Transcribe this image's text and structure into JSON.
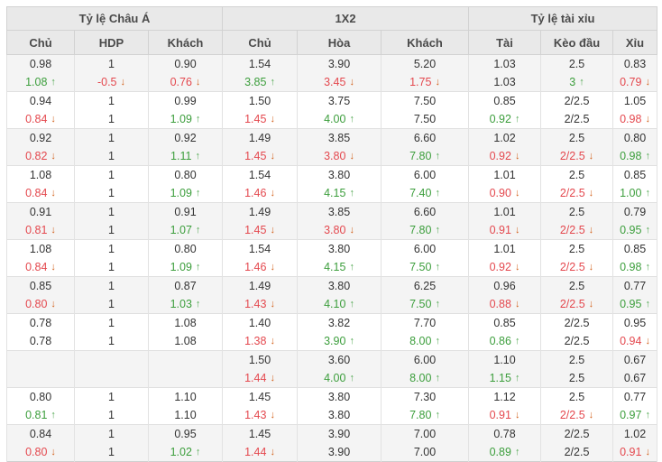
{
  "table": {
    "groups": [
      {
        "label": "Tỷ lệ Châu Á",
        "cols": [
          "Chủ",
          "HDP",
          "Khách"
        ]
      },
      {
        "label": "1X2",
        "cols": [
          "Chủ",
          "Hòa",
          "Khách"
        ]
      },
      {
        "label": "Tỷ lệ tài xỉu",
        "cols": [
          "Tài",
          "Kèo đầu",
          "Xỉu"
        ]
      }
    ],
    "colors": {
      "green": "#3c9e3c",
      "red": "#e4484e",
      "green_arrow": "#52a852",
      "red_arrow": "#d2601a",
      "text": "#333333",
      "header_bg": "#e9e9e9",
      "shade_bg": "#f4f4f4"
    },
    "rows": [
      {
        "shaded": true,
        "lines": [
          [
            {
              "v": "0.98"
            },
            {
              "v": "1"
            },
            {
              "v": "0.90"
            },
            {
              "v": "1.54"
            },
            {
              "v": "3.90"
            },
            {
              "v": "5.20"
            },
            {
              "v": "1.03"
            },
            {
              "v": "2.5"
            },
            {
              "v": "0.83"
            }
          ],
          [
            {
              "v": "1.08",
              "c": "green",
              "a": "up"
            },
            {
              "v": "-0.5",
              "c": "red",
              "a": "down"
            },
            {
              "v": "0.76",
              "c": "red",
              "a": "down"
            },
            {
              "v": "3.85",
              "c": "green",
              "a": "up"
            },
            {
              "v": "3.45",
              "c": "red",
              "a": "down"
            },
            {
              "v": "1.75",
              "c": "red",
              "a": "down"
            },
            {
              "v": "1.03"
            },
            {
              "v": "3",
              "c": "green",
              "a": "up"
            },
            {
              "v": "0.79",
              "c": "red",
              "a": "down"
            }
          ]
        ]
      },
      {
        "shaded": false,
        "lines": [
          [
            {
              "v": "0.94"
            },
            {
              "v": "1"
            },
            {
              "v": "0.99"
            },
            {
              "v": "1.50"
            },
            {
              "v": "3.75"
            },
            {
              "v": "7.50"
            },
            {
              "v": "0.85"
            },
            {
              "v": "2/2.5"
            },
            {
              "v": "1.05"
            }
          ],
          [
            {
              "v": "0.84",
              "c": "red",
              "a": "down"
            },
            {
              "v": "1"
            },
            {
              "v": "1.09",
              "c": "green",
              "a": "up"
            },
            {
              "v": "1.45",
              "c": "red",
              "a": "down"
            },
            {
              "v": "4.00",
              "c": "green",
              "a": "up"
            },
            {
              "v": "7.50"
            },
            {
              "v": "0.92",
              "c": "green",
              "a": "up"
            },
            {
              "v": "2/2.5"
            },
            {
              "v": "0.98",
              "c": "red",
              "a": "down"
            }
          ]
        ]
      },
      {
        "shaded": true,
        "lines": [
          [
            {
              "v": "0.92"
            },
            {
              "v": "1"
            },
            {
              "v": "0.92"
            },
            {
              "v": "1.49"
            },
            {
              "v": "3.85"
            },
            {
              "v": "6.60"
            },
            {
              "v": "1.02"
            },
            {
              "v": "2.5"
            },
            {
              "v": "0.80"
            }
          ],
          [
            {
              "v": "0.82",
              "c": "red",
              "a": "down"
            },
            {
              "v": "1"
            },
            {
              "v": "1.11",
              "c": "green",
              "a": "up"
            },
            {
              "v": "1.45",
              "c": "red",
              "a": "down"
            },
            {
              "v": "3.80",
              "c": "red",
              "a": "down"
            },
            {
              "v": "7.80",
              "c": "green",
              "a": "up"
            },
            {
              "v": "0.92",
              "c": "red",
              "a": "down"
            },
            {
              "v": "2/2.5",
              "c": "red",
              "a": "down"
            },
            {
              "v": "0.98",
              "c": "green",
              "a": "up"
            }
          ]
        ]
      },
      {
        "shaded": false,
        "lines": [
          [
            {
              "v": "1.08"
            },
            {
              "v": "1"
            },
            {
              "v": "0.80"
            },
            {
              "v": "1.54"
            },
            {
              "v": "3.80"
            },
            {
              "v": "6.00"
            },
            {
              "v": "1.01"
            },
            {
              "v": "2.5"
            },
            {
              "v": "0.85"
            }
          ],
          [
            {
              "v": "0.84",
              "c": "red",
              "a": "down"
            },
            {
              "v": "1"
            },
            {
              "v": "1.09",
              "c": "green",
              "a": "up"
            },
            {
              "v": "1.46",
              "c": "red",
              "a": "down"
            },
            {
              "v": "4.15",
              "c": "green",
              "a": "up"
            },
            {
              "v": "7.40",
              "c": "green",
              "a": "up"
            },
            {
              "v": "0.90",
              "c": "red",
              "a": "down"
            },
            {
              "v": "2/2.5",
              "c": "red",
              "a": "down"
            },
            {
              "v": "1.00",
              "c": "green",
              "a": "up"
            }
          ]
        ]
      },
      {
        "shaded": true,
        "lines": [
          [
            {
              "v": "0.91"
            },
            {
              "v": "1"
            },
            {
              "v": "0.91"
            },
            {
              "v": "1.49"
            },
            {
              "v": "3.85"
            },
            {
              "v": "6.60"
            },
            {
              "v": "1.01"
            },
            {
              "v": "2.5"
            },
            {
              "v": "0.79"
            }
          ],
          [
            {
              "v": "0.81",
              "c": "red",
              "a": "down"
            },
            {
              "v": "1"
            },
            {
              "v": "1.07",
              "c": "green",
              "a": "up"
            },
            {
              "v": "1.45",
              "c": "red",
              "a": "down"
            },
            {
              "v": "3.80",
              "c": "red",
              "a": "down"
            },
            {
              "v": "7.80",
              "c": "green",
              "a": "up"
            },
            {
              "v": "0.91",
              "c": "red",
              "a": "down"
            },
            {
              "v": "2/2.5",
              "c": "red",
              "a": "down"
            },
            {
              "v": "0.95",
              "c": "green",
              "a": "up"
            }
          ]
        ]
      },
      {
        "shaded": false,
        "lines": [
          [
            {
              "v": "1.08"
            },
            {
              "v": "1"
            },
            {
              "v": "0.80"
            },
            {
              "v": "1.54"
            },
            {
              "v": "3.80"
            },
            {
              "v": "6.00"
            },
            {
              "v": "1.01"
            },
            {
              "v": "2.5"
            },
            {
              "v": "0.85"
            }
          ],
          [
            {
              "v": "0.84",
              "c": "red",
              "a": "down"
            },
            {
              "v": "1"
            },
            {
              "v": "1.09",
              "c": "green",
              "a": "up"
            },
            {
              "v": "1.46",
              "c": "red",
              "a": "down"
            },
            {
              "v": "4.15",
              "c": "green",
              "a": "up"
            },
            {
              "v": "7.50",
              "c": "green",
              "a": "up"
            },
            {
              "v": "0.92",
              "c": "red",
              "a": "down"
            },
            {
              "v": "2/2.5",
              "c": "red",
              "a": "down"
            },
            {
              "v": "0.98",
              "c": "green",
              "a": "up"
            }
          ]
        ]
      },
      {
        "shaded": true,
        "lines": [
          [
            {
              "v": "0.85"
            },
            {
              "v": "1"
            },
            {
              "v": "0.87"
            },
            {
              "v": "1.49"
            },
            {
              "v": "3.80"
            },
            {
              "v": "6.25"
            },
            {
              "v": "0.96"
            },
            {
              "v": "2.5"
            },
            {
              "v": "0.77"
            }
          ],
          [
            {
              "v": "0.80",
              "c": "red",
              "a": "down"
            },
            {
              "v": "1"
            },
            {
              "v": "1.03",
              "c": "green",
              "a": "up"
            },
            {
              "v": "1.43",
              "c": "red",
              "a": "down"
            },
            {
              "v": "4.10",
              "c": "green",
              "a": "up"
            },
            {
              "v": "7.50",
              "c": "green",
              "a": "up"
            },
            {
              "v": "0.88",
              "c": "red",
              "a": "down"
            },
            {
              "v": "2/2.5",
              "c": "red",
              "a": "down"
            },
            {
              "v": "0.95",
              "c": "green",
              "a": "up"
            }
          ]
        ]
      },
      {
        "shaded": false,
        "lines": [
          [
            {
              "v": "0.78"
            },
            {
              "v": "1"
            },
            {
              "v": "1.08"
            },
            {
              "v": "1.40"
            },
            {
              "v": "3.82"
            },
            {
              "v": "7.70"
            },
            {
              "v": "0.85"
            },
            {
              "v": "2/2.5"
            },
            {
              "v": "0.95"
            }
          ],
          [
            {
              "v": "0.78"
            },
            {
              "v": "1"
            },
            {
              "v": "1.08"
            },
            {
              "v": "1.38",
              "c": "red",
              "a": "down"
            },
            {
              "v": "3.90",
              "c": "green",
              "a": "up"
            },
            {
              "v": "8.00",
              "c": "green",
              "a": "up"
            },
            {
              "v": "0.86",
              "c": "green",
              "a": "up"
            },
            {
              "v": "2/2.5"
            },
            {
              "v": "0.94",
              "c": "red",
              "a": "down"
            }
          ]
        ]
      },
      {
        "shaded": true,
        "lines": [
          [
            {
              "v": ""
            },
            {
              "v": ""
            },
            {
              "v": ""
            },
            {
              "v": "1.50"
            },
            {
              "v": "3.60"
            },
            {
              "v": "6.00"
            },
            {
              "v": "1.10"
            },
            {
              "v": "2.5"
            },
            {
              "v": "0.67"
            }
          ],
          [
            {
              "v": ""
            },
            {
              "v": ""
            },
            {
              "v": ""
            },
            {
              "v": "1.44",
              "c": "red",
              "a": "down"
            },
            {
              "v": "4.00",
              "c": "green",
              "a": "up"
            },
            {
              "v": "8.00",
              "c": "green",
              "a": "up"
            },
            {
              "v": "1.15",
              "c": "green",
              "a": "up"
            },
            {
              "v": "2.5"
            },
            {
              "v": "0.67"
            }
          ]
        ]
      },
      {
        "shaded": false,
        "lines": [
          [
            {
              "v": "0.80"
            },
            {
              "v": "1"
            },
            {
              "v": "1.10"
            },
            {
              "v": "1.45"
            },
            {
              "v": "3.80"
            },
            {
              "v": "7.30"
            },
            {
              "v": "1.12"
            },
            {
              "v": "2.5"
            },
            {
              "v": "0.77"
            }
          ],
          [
            {
              "v": "0.81",
              "c": "green",
              "a": "up"
            },
            {
              "v": "1"
            },
            {
              "v": "1.10"
            },
            {
              "v": "1.43",
              "c": "red",
              "a": "down"
            },
            {
              "v": "3.80"
            },
            {
              "v": "7.80",
              "c": "green",
              "a": "up"
            },
            {
              "v": "0.91",
              "c": "red",
              "a": "down"
            },
            {
              "v": "2/2.5",
              "c": "red",
              "a": "down"
            },
            {
              "v": "0.97",
              "c": "green",
              "a": "up"
            }
          ]
        ]
      },
      {
        "shaded": true,
        "lines": [
          [
            {
              "v": "0.84"
            },
            {
              "v": "1"
            },
            {
              "v": "0.95"
            },
            {
              "v": "1.45"
            },
            {
              "v": "3.90"
            },
            {
              "v": "7.00"
            },
            {
              "v": "0.78"
            },
            {
              "v": "2/2.5"
            },
            {
              "v": "1.02"
            }
          ],
          [
            {
              "v": "0.80",
              "c": "red",
              "a": "down"
            },
            {
              "v": "1"
            },
            {
              "v": "1.02",
              "c": "green",
              "a": "up"
            },
            {
              "v": "1.44",
              "c": "red",
              "a": "down"
            },
            {
              "v": "3.90"
            },
            {
              "v": "7.00"
            },
            {
              "v": "0.89",
              "c": "green",
              "a": "up"
            },
            {
              "v": "2/2.5"
            },
            {
              "v": "0.91",
              "c": "red",
              "a": "down"
            }
          ]
        ]
      }
    ]
  }
}
